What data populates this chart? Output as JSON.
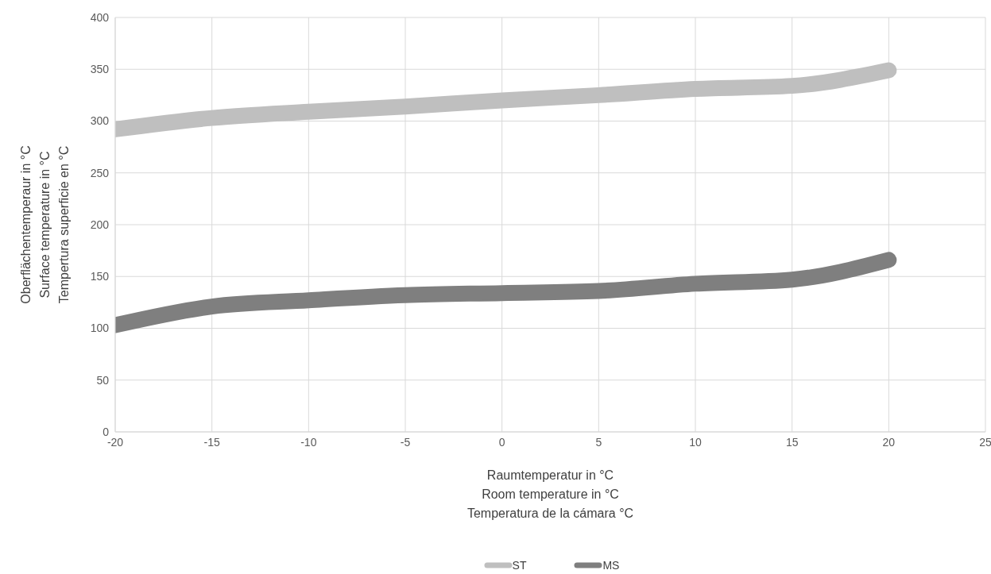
{
  "chart_data": {
    "type": "line",
    "xlabel": "Raumtemperatur in °C\nRoom temperature in °C\nTemperatura de la cámara °C",
    "ylabel": "Oberflächentemperaur in °C\nSurface temperature in °C\nTempertura superficie en °C",
    "x": [
      -20,
      -15,
      -10,
      -5,
      0,
      5,
      10,
      15,
      20
    ],
    "series": [
      {
        "name": "ST",
        "color": "#bfbfbf",
        "values": [
          292,
          303,
          309,
          314,
          320,
          325,
          331,
          334,
          349
        ]
      },
      {
        "name": "MS",
        "color": "#7f7f7f",
        "values": [
          103,
          121,
          127,
          132,
          134,
          136,
          143,
          147,
          166
        ]
      }
    ],
    "xlim": [
      -20,
      25
    ],
    "xticks": [
      -20,
      -15,
      -10,
      -5,
      0,
      5,
      10,
      15,
      20,
      25
    ],
    "ylim": [
      0,
      400
    ],
    "yticks": [
      0,
      50,
      100,
      150,
      200,
      250,
      300,
      350,
      400
    ],
    "grid": true,
    "legend": "bottom",
    "marker": "none",
    "line_style": "solid"
  }
}
